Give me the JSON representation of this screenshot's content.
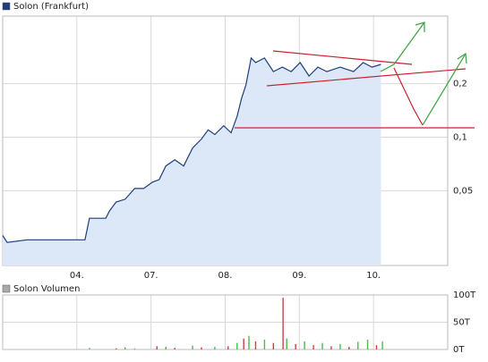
{
  "chart_data": [
    {
      "type": "area",
      "log_scale": true,
      "grid": true,
      "series": [
        {
          "name": "Solon (Frankfurt)",
          "color": "#1f3f7a",
          "fill": "#dce8f8",
          "x": [
            0,
            0.06,
            0.33,
            0.69,
            1.11,
            1.17,
            1.39,
            1.44,
            1.53,
            1.65,
            1.78,
            1.9,
            2.02,
            2.11,
            2.2,
            2.32,
            2.44,
            2.56,
            2.68,
            2.77,
            2.86,
            2.98,
            3.08,
            3.16,
            3.22,
            3.28,
            3.35,
            3.41,
            3.53,
            3.65,
            3.77,
            3.89,
            4.01,
            4.13,
            4.25,
            4.37,
            4.55,
            4.73,
            4.86,
            4.98,
            5.1
          ],
          "values": [
            0.028,
            0.0256,
            0.0265,
            0.0265,
            0.0265,
            0.035,
            0.035,
            0.0385,
            0.0432,
            0.0448,
            0.0515,
            0.0515,
            0.0559,
            0.0578,
            0.0689,
            0.0747,
            0.0689,
            0.087,
            0.0977,
            0.11,
            0.1035,
            0.116,
            0.106,
            0.131,
            0.165,
            0.197,
            0.279,
            0.263,
            0.279,
            0.234,
            0.248,
            0.234,
            0.263,
            0.221,
            0.248,
            0.234,
            0.248,
            0.234,
            0.263,
            0.248,
            0.257
          ]
        }
      ],
      "xlim": [
        0,
        6
      ],
      "xticks": [
        {
          "value": 1,
          "label": "04."
        },
        {
          "value": 2,
          "label": "07."
        },
        {
          "value": 3,
          "label": "08."
        },
        {
          "value": 4,
          "label": "09."
        },
        {
          "value": 5,
          "label": "10."
        }
      ],
      "ylim": [
        0.019,
        0.48
      ],
      "yticks": [
        {
          "value": 0.05,
          "label": "0,05"
        },
        {
          "value": 0.1,
          "label": "0,1"
        },
        {
          "value": 0.2,
          "label": "0,2"
        }
      ]
    },
    {
      "type": "bar",
      "grid": true,
      "series": [
        {
          "name": "Solon Volumen",
          "color": "#aaaaaa",
          "x": [
            1.17,
            1.53,
            1.65,
            1.78,
            2.08,
            2.2,
            2.32,
            2.56,
            2.68,
            2.86,
            3.04,
            3.16,
            3.25,
            3.32,
            3.41,
            3.53,
            3.65,
            3.78,
            3.83,
            3.95,
            4.07,
            4.19,
            4.31,
            4.43,
            4.55,
            4.67,
            4.79,
            4.92,
            5.04,
            5.12
          ],
          "values": [
            3,
            2,
            4,
            2,
            6,
            5,
            3,
            7,
            4,
            5,
            6,
            12,
            20,
            25,
            15,
            18,
            12,
            95,
            20,
            10,
            15,
            8,
            12,
            6,
            10,
            5,
            14,
            18,
            8,
            15
          ],
          "colors": [
            "#4cbb4c",
            "#d04040",
            "#4cbb4c",
            "#4cbb4c",
            "#d04040",
            "#4cbb4c",
            "#d04040",
            "#4cbb4c",
            "#d04040",
            "#4cbb4c",
            "#d04040",
            "#4cbb4c",
            "#d04040",
            "#4cbb4c",
            "#d04040",
            "#4cbb4c",
            "#d04040",
            "#d04040",
            "#4cbb4c",
            "#d04040",
            "#4cbb4c",
            "#d04040",
            "#4cbb4c",
            "#d04040",
            "#4cbb4c",
            "#d04040",
            "#4cbb4c",
            "#4cbb4c",
            "#d04040",
            "#4cbb4c"
          ]
        }
      ],
      "xlim": [
        0,
        6
      ],
      "ylim": [
        0,
        100
      ],
      "yticks": [
        {
          "value": 0,
          "label": "0T"
        },
        {
          "value": 50,
          "label": "50T"
        },
        {
          "value": 100,
          "label": "100T"
        }
      ]
    }
  ]
}
